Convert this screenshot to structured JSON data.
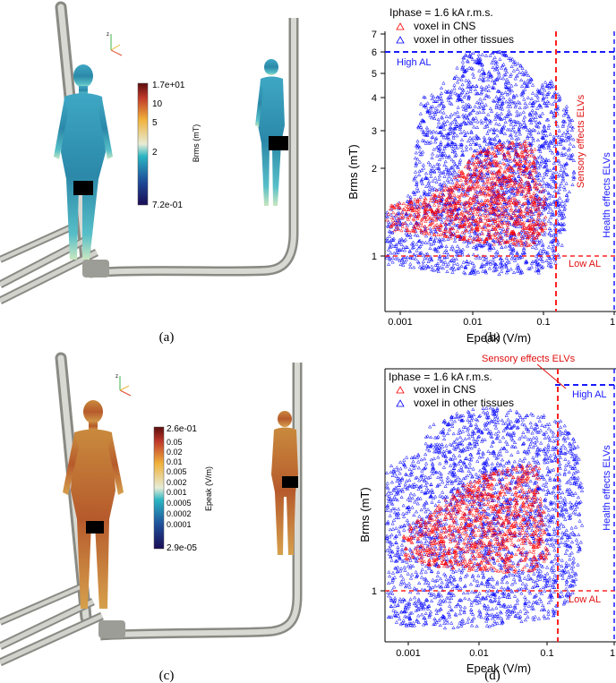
{
  "panels": {
    "a": {
      "label": "(a)",
      "colorbar": {
        "top": "1.7e+01",
        "ticks": [
          "10",
          "5",
          "2"
        ],
        "bottom": "7.2e-01",
        "title": "Brms (mT)"
      }
    },
    "b": {
      "label": "(b)",
      "legend_title": "Iphase = 1.6 kA r.m.s.",
      "ylabel": "Brms (mT)",
      "xlabel": "Epeak (V/m)",
      "xticks": [
        "0.001",
        "0.01",
        "0.1",
        "1"
      ],
      "yticks": [
        "1",
        "2",
        "3",
        "4",
        "5",
        "6",
        "7"
      ],
      "annotations": {
        "high": "High AL",
        "low": "Low AL",
        "sensory": "Sensory effects ELVs",
        "health": "Health effects ELVs"
      }
    },
    "c": {
      "label": "(c)",
      "colorbar": {
        "top": "2.6e-01",
        "ticks": [
          "0.05",
          "0.02",
          "0.01",
          "0.005",
          "0.002",
          "0.001",
          "0.0005",
          "0.0002",
          "0.0001"
        ],
        "bottom": "2.9e-05",
        "title": "Epeak (V/m)"
      }
    },
    "d": {
      "label": "(d)",
      "legend_title": "Iphase = 1.6 kA r.m.s.",
      "ylabel": "Brms (mT)",
      "xlabel": "Epeak (V/m)",
      "xticks": [
        "0.001",
        "0.01",
        "0.1",
        "1"
      ],
      "yticks": [
        "1"
      ],
      "annotations": {
        "high": "High AL",
        "low": "Low AL",
        "sensory": "Sensory effects ELVs",
        "health": "Health effects ELVs"
      }
    }
  },
  "chart_data": [
    {
      "type": "scatter",
      "xlabel": "Epeak (V/m)",
      "ylabel": "Brms (mT)",
      "xscale": "log",
      "yscale": "log",
      "xlim": [
        0.0005,
        1
      ],
      "ylim": [
        0.8,
        7
      ],
      "legend": "top-left",
      "series": [
        {
          "name": "voxel in CNS",
          "color": "#ff0000",
          "marker": "triangle"
        },
        {
          "name": "voxel in other tissues",
          "color": "#0000ff",
          "marker": "triangle"
        }
      ],
      "reference_lines": {
        "high_al_brms": 6,
        "low_al_brms": 1,
        "sensory_elv_epeak": 0.14,
        "health_elv_epeak": 1
      }
    },
    {
      "type": "scatter",
      "xlabel": "Epeak (V/m)",
      "ylabel": "Brms (mT)",
      "xscale": "log",
      "yscale": "log",
      "xlim": [
        0.0002,
        1
      ],
      "ylim": [
        0.7,
        6.5
      ],
      "legend": "top-left",
      "series": [
        {
          "name": "voxel in CNS",
          "color": "#ff0000",
          "marker": "triangle"
        },
        {
          "name": "voxel in other tissues",
          "color": "#0000ff",
          "marker": "triangle"
        }
      ],
      "reference_lines": {
        "high_al_brms": 6,
        "low_al_brms": 1,
        "sensory_elv_epeak": 0.14,
        "health_elv_epeak": 1
      }
    }
  ]
}
